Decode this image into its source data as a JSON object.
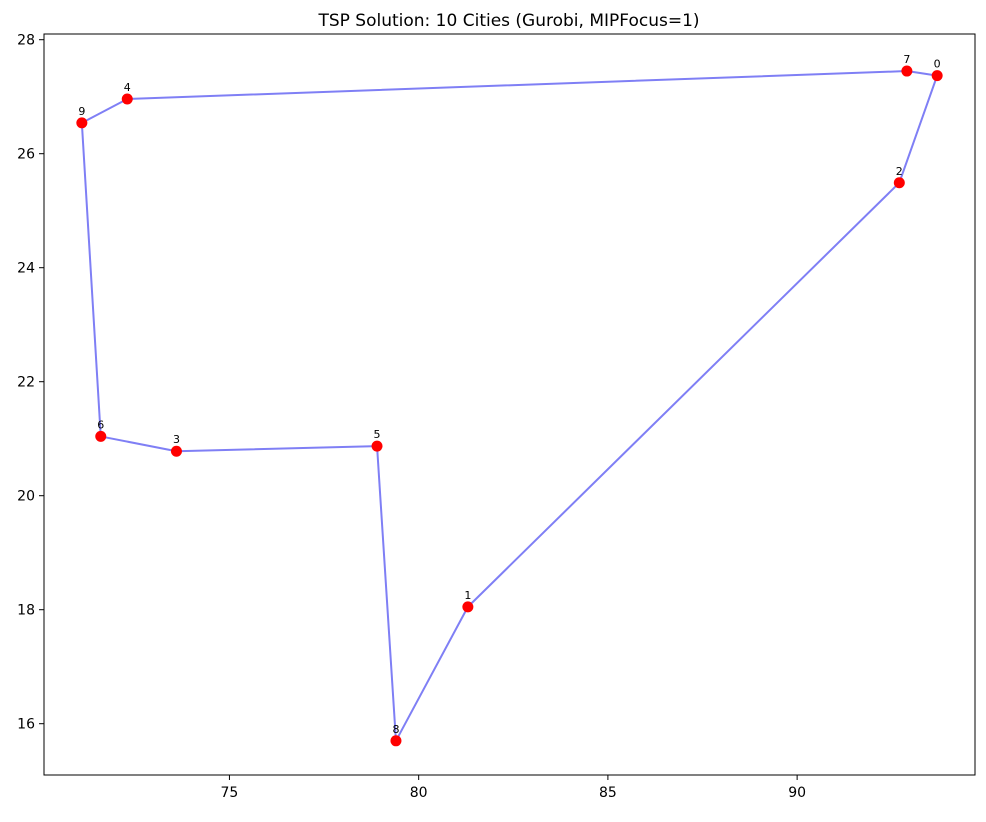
{
  "chart_data": {
    "type": "scatter",
    "title": "TSP Solution: 10 Cities (Gurobi, MIPFocus=1)",
    "xlabel": "",
    "ylabel": "",
    "xlim": [
      70.1,
      94.7
    ],
    "ylim": [
      15.1,
      28.1
    ],
    "xticks": [
      75,
      80,
      85,
      90
    ],
    "yticks": [
      16,
      18,
      20,
      22,
      24,
      26,
      28
    ],
    "grid": false,
    "point_color": "#ff0000",
    "route_color": "#7f7ff5",
    "cities": [
      {
        "label": "0",
        "x": 93.7,
        "y": 27.37
      },
      {
        "label": "1",
        "x": 81.3,
        "y": 18.05
      },
      {
        "label": "2",
        "x": 92.7,
        "y": 25.49
      },
      {
        "label": "3",
        "x": 73.6,
        "y": 20.78
      },
      {
        "label": "4",
        "x": 72.3,
        "y": 26.96
      },
      {
        "label": "5",
        "x": 78.9,
        "y": 20.87
      },
      {
        "label": "6",
        "x": 71.6,
        "y": 21.04
      },
      {
        "label": "7",
        "x": 92.9,
        "y": 27.45
      },
      {
        "label": "8",
        "x": 79.4,
        "y": 15.7
      },
      {
        "label": "9",
        "x": 71.1,
        "y": 26.54
      }
    ],
    "tour": [
      0,
      7,
      4,
      9,
      6,
      3,
      5,
      8,
      1,
      2,
      0
    ]
  }
}
